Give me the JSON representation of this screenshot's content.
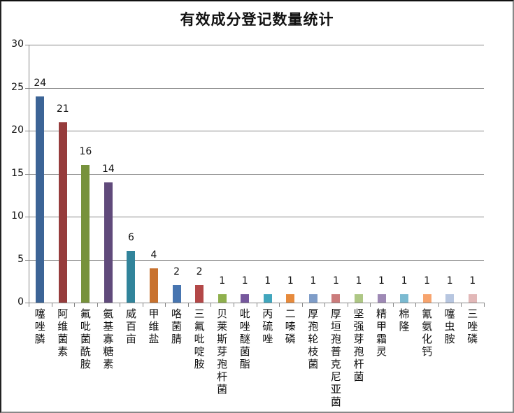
{
  "chart_data": {
    "type": "bar",
    "title": "有效成分登记数量统计",
    "xlabel": "",
    "ylabel": "",
    "ylim": [
      0,
      30
    ],
    "yticks": [
      0,
      5,
      10,
      15,
      20,
      25,
      30
    ],
    "grid": true,
    "legend": null,
    "data_labels": true,
    "categories": [
      "噻唑膦",
      "阿维菌素",
      "氟吡菌酰胺",
      "氨基寡糖素",
      "威百亩",
      "甲维盐",
      "咯菌腈",
      "三氟吡啶胺",
      "贝莱斯芽孢杆菌",
      "吡唑醚菌酯",
      "丙硫唑",
      "二嗪磷",
      "厚孢轮枝菌",
      "厚垣孢普克尼亚菌",
      "坚强芽孢杆菌",
      "精甲霜灵",
      "棉隆",
      "氰氨化钙",
      "噻虫胺",
      "三唑磷"
    ],
    "values": [
      24,
      21,
      16,
      14,
      6,
      4,
      2,
      2,
      1,
      1,
      1,
      1,
      1,
      1,
      1,
      1,
      1,
      1,
      1,
      1
    ],
    "colors": [
      "#3c6496",
      "#963c3c",
      "#77923c",
      "#604a7b",
      "#31849b",
      "#c8722f",
      "#4775b0",
      "#b34848",
      "#8fb04d",
      "#76589d",
      "#41a6bd",
      "#e68a3c",
      "#7f9dc8",
      "#cb7c7c",
      "#aec785",
      "#9e89b5",
      "#7bbad1",
      "#f7a46e",
      "#b7c6e0",
      "#e2b8b8"
    ]
  }
}
